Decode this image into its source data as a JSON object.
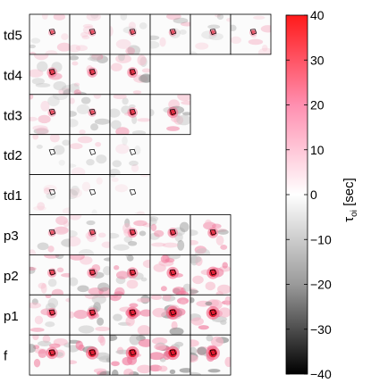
{
  "chart_data": {
    "type": "heatmap",
    "title": "",
    "row_labels": [
      "td5",
      "td4",
      "td3",
      "td2",
      "td1",
      "p3",
      "p2",
      "p1",
      "f"
    ],
    "panels_per_row": [
      6,
      3,
      4,
      3,
      3,
      5,
      5,
      5,
      5
    ],
    "panel_intensity": [
      [
        0.25,
        0.3,
        0.3,
        0.3,
        0.25,
        0.25
      ],
      [
        0.55,
        0.55,
        0.6
      ],
      [
        0.35,
        0.35,
        0.55,
        0.65
      ],
      [
        0.1,
        0.15,
        0.15
      ],
      [
        0.05,
        0.05,
        0.05
      ],
      [
        0.3,
        0.35,
        0.5,
        0.55,
        0.6
      ],
      [
        0.45,
        0.55,
        0.65,
        0.75,
        0.8
      ],
      [
        0.55,
        0.65,
        0.8,
        0.9,
        0.9
      ],
      [
        0.75,
        0.85,
        0.9,
        0.95,
        0.95
      ]
    ],
    "colorbar": {
      "label_main": "τ",
      "label_sub": "oi",
      "label_unit": " [sec]",
      "range": [
        -40,
        40
      ],
      "ticks": [
        40,
        30,
        20,
        10,
        0,
        -10,
        -20,
        -30,
        -40
      ],
      "colors": {
        "max": "#ff1a1a",
        "mid_high": "#ff8fb0",
        "zero": "#ffffff",
        "mid_low": "#9a9a9a",
        "min": "#000000"
      }
    }
  }
}
